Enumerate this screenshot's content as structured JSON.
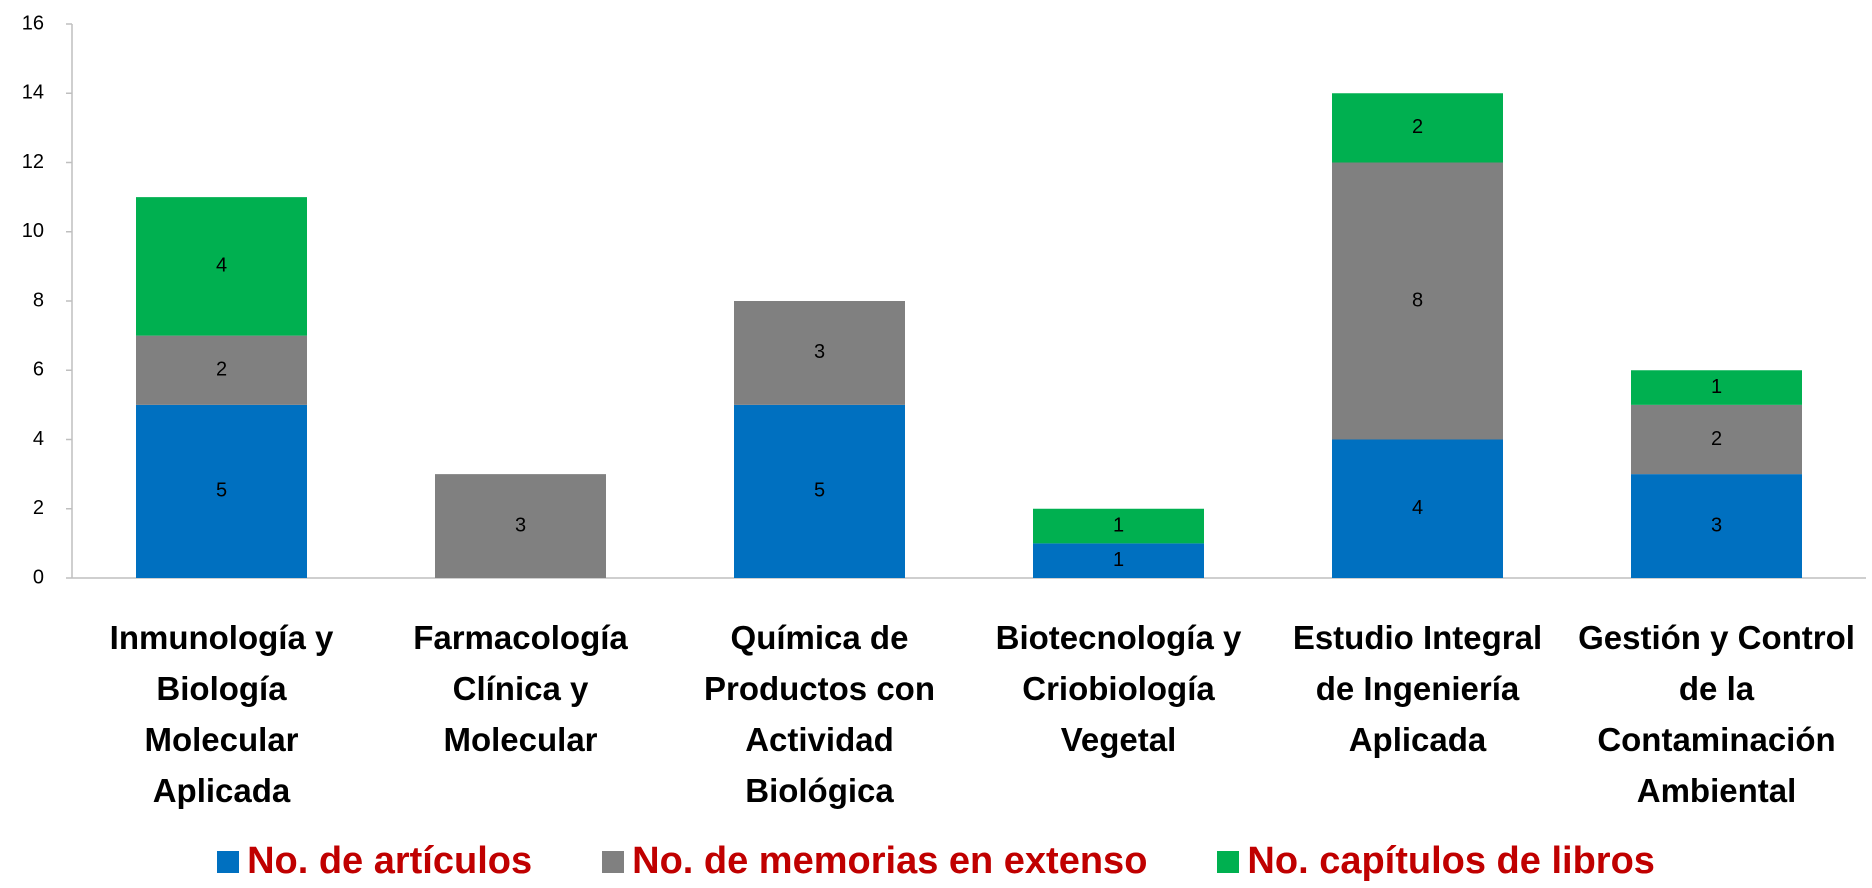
{
  "chart_data": {
    "type": "stacked_bar",
    "categories": [
      "Inmunología y Biología Molecular Aplicada",
      "Farmacología Clínica y Molecular",
      "Química de Productos con Actividad Biológica",
      "Biotecnología y Criobiología Vegetal",
      "Estudio Integral de Ingeniería Aplicada",
      "Gestión y Control de la Contaminación Ambiental"
    ],
    "series": [
      {
        "name": "No. de artículos",
        "color": "#0070c0",
        "values": [
          5,
          0,
          5,
          1,
          4,
          3
        ]
      },
      {
        "name": "No. de memorias en extenso",
        "color": "#808080",
        "values": [
          2,
          3,
          3,
          0,
          8,
          2
        ]
      },
      {
        "name": "No. capítulos de libros",
        "color": "#00b050",
        "values": [
          4,
          0,
          0,
          1,
          2,
          1
        ]
      }
    ],
    "ylim": [
      0,
      16
    ],
    "yticks": [
      0,
      2,
      4,
      6,
      8,
      10,
      12,
      14,
      16
    ],
    "grid": false,
    "legend": "bottom"
  }
}
